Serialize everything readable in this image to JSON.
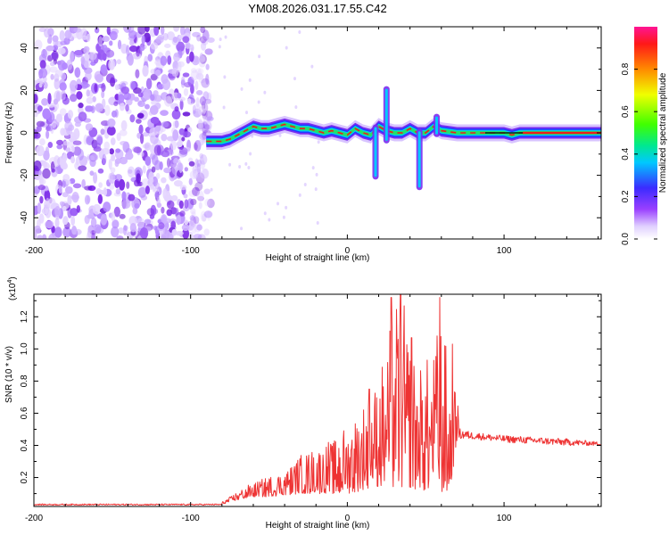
{
  "figure": {
    "title": "YM08.2026.031.17.55.C42"
  },
  "colors": {
    "snr_line": "#ee3333",
    "ridge_core": "#ee1c1c",
    "background": "#ffffff"
  },
  "chart_data": [
    {
      "type": "heatmap",
      "name": "spectrogram",
      "xlabel": "Height of straight line (km)",
      "ylabel": "Frequency (Hz)",
      "xlim": [
        -200,
        162
      ],
      "ylim": [
        -50,
        50
      ],
      "xticks": [
        -200,
        -100,
        0,
        100
      ],
      "xtick_labels": [
        "-200",
        "-100",
        "0",
        "100"
      ],
      "yticks": [
        -40,
        -20,
        0,
        20,
        40
      ],
      "ytick_labels": [
        "-40",
        "-20",
        "0",
        "20",
        "40"
      ],
      "noise_region_x": [
        -200,
        -87
      ],
      "ridge": {
        "x": [
          -90,
          -85,
          -80,
          -75,
          -70,
          -65,
          -60,
          -55,
          -50,
          -45,
          -40,
          -35,
          -30,
          -25,
          -20,
          -15,
          -10,
          -5,
          0,
          5,
          10,
          15,
          20,
          25,
          30,
          35,
          40,
          45,
          50,
          55,
          60,
          70,
          80,
          90,
          100,
          105,
          110,
          120,
          130,
          140,
          150,
          162
        ],
        "freq": [
          -4,
          -4,
          -4,
          -3,
          -1,
          1,
          3,
          2,
          2,
          3,
          4,
          3,
          2,
          2,
          1,
          0,
          1,
          0,
          -1,
          2,
          0,
          -1,
          3,
          1,
          0,
          0,
          2,
          0,
          0,
          3,
          1,
          0,
          0,
          0,
          0,
          -1,
          0,
          0,
          0,
          0,
          0,
          0
        ]
      },
      "spikes": [
        {
          "x": 18,
          "f_min": -22,
          "f_max": 4
        },
        {
          "x": 25,
          "f_min": -5,
          "f_max": 22
        },
        {
          "x": 46,
          "f_min": -27,
          "f_max": 2
        },
        {
          "x": 57,
          "f_min": -2,
          "f_max": 9
        }
      ],
      "colorbar": {
        "label": "Normalized spectral amplitude",
        "range": [
          0,
          1
        ],
        "ticks": [
          0.0,
          0.2,
          0.4,
          0.6,
          0.8
        ],
        "tick_labels": [
          "0.0",
          "0.2",
          "0.4",
          "0.6",
          "0.8"
        ]
      }
    },
    {
      "type": "line",
      "name": "snr",
      "xlabel": "Height of straight line (km)",
      "ylabel": "SNR (10 * v/v)",
      "scale_label_base": "(x10",
      "scale_label_exp": "4",
      "scale_label_close": ")",
      "xlim": [
        -200,
        162
      ],
      "ylim": [
        0.02,
        1.34
      ],
      "xticks": [
        -200,
        -100,
        0,
        100
      ],
      "xtick_labels": [
        "-200",
        "-100",
        "0",
        "100"
      ],
      "yticks": [
        0.2,
        0.4,
        0.6,
        0.8,
        1.0,
        1.2
      ],
      "ytick_labels": [
        "0.2",
        "0.4",
        "0.6",
        "0.8",
        "1.0",
        "1.2"
      ],
      "envelope": {
        "x": [
          -200,
          -100,
          -80,
          -75,
          -70,
          -60,
          -55,
          -50,
          -40,
          -30,
          -20,
          -10,
          0,
          10,
          15,
          20,
          25,
          30,
          35,
          40,
          45,
          50,
          55,
          60,
          65,
          70,
          72,
          80,
          100,
          120,
          140,
          162
        ],
        "low": [
          0.03,
          0.03,
          0.03,
          0.05,
          0.06,
          0.08,
          0.08,
          0.08,
          0.09,
          0.1,
          0.1,
          0.1,
          0.1,
          0.12,
          0.12,
          0.14,
          0.14,
          0.14,
          0.14,
          0.14,
          0.12,
          0.12,
          0.12,
          0.06,
          0.06,
          0.44,
          0.44,
          0.44,
          0.42,
          0.41,
          0.4,
          0.4
        ],
        "high": [
          0.03,
          0.03,
          0.05,
          0.08,
          0.12,
          0.17,
          0.2,
          0.22,
          0.25,
          0.35,
          0.4,
          0.45,
          0.55,
          0.7,
          0.75,
          0.9,
          1.0,
          1.32,
          1.34,
          1.1,
          0.9,
          0.95,
          1.0,
          1.32,
          0.85,
          0.75,
          0.5,
          0.48,
          0.46,
          0.45,
          0.44,
          0.42
        ]
      },
      "peaks": [
        {
          "x": 28,
          "y": 1.32
        },
        {
          "x": 34,
          "y": 1.34
        },
        {
          "x": 59,
          "y": 1.32
        },
        {
          "x": 14,
          "y": 0.75
        },
        {
          "x": 41,
          "y": 1.07
        },
        {
          "x": 67,
          "y": 1.03
        }
      ]
    }
  ]
}
